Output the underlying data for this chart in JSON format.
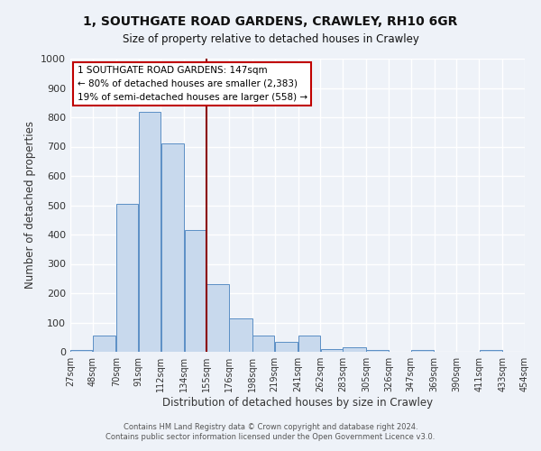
{
  "title": "1, SOUTHGATE ROAD GARDENS, CRAWLEY, RH10 6GR",
  "subtitle": "Size of property relative to detached houses in Crawley",
  "xlabel": "Distribution of detached houses by size in Crawley",
  "ylabel": "Number of detached properties",
  "bar_left_edges": [
    27,
    48,
    70,
    91,
    112,
    134,
    155,
    176,
    198,
    219,
    241,
    262,
    283,
    305,
    326,
    347,
    369,
    390,
    411,
    433
  ],
  "bar_widths": [
    21,
    22,
    21,
    21,
    22,
    21,
    21,
    22,
    21,
    22,
    21,
    21,
    22,
    21,
    21,
    22,
    21,
    21,
    22,
    21
  ],
  "bar_heights": [
    5,
    55,
    505,
    820,
    710,
    415,
    230,
    115,
    55,
    35,
    55,
    10,
    15,
    5,
    0,
    5,
    0,
    0,
    5,
    0
  ],
  "tick_labels": [
    "27sqm",
    "48sqm",
    "70sqm",
    "91sqm",
    "112sqm",
    "134sqm",
    "155sqm",
    "176sqm",
    "198sqm",
    "219sqm",
    "241sqm",
    "262sqm",
    "283sqm",
    "305sqm",
    "326sqm",
    "347sqm",
    "369sqm",
    "390sqm",
    "411sqm",
    "433sqm",
    "454sqm"
  ],
  "tick_positions": [
    27,
    48,
    70,
    91,
    112,
    134,
    155,
    176,
    198,
    219,
    241,
    262,
    283,
    305,
    326,
    347,
    369,
    390,
    411,
    433,
    454
  ],
  "bar_color": "#c8d9ed",
  "bar_edge_color": "#5b8fc5",
  "vline_x": 155,
  "vline_color": "#8b0000",
  "ylim": [
    0,
    1000
  ],
  "yticks": [
    0,
    100,
    200,
    300,
    400,
    500,
    600,
    700,
    800,
    900,
    1000
  ],
  "annotation_title": "1 SOUTHGATE ROAD GARDENS: 147sqm",
  "annotation_line1": "← 80% of detached houses are smaller (2,383)",
  "annotation_line2": "19% of semi-detached houses are larger (558) →",
  "annotation_box_color": "#ffffff",
  "annotation_box_edge": "#c00000",
  "footer_line1": "Contains HM Land Registry data © Crown copyright and database right 2024.",
  "footer_line2": "Contains public sector information licensed under the Open Government Licence v3.0.",
  "bg_color": "#eef2f8",
  "grid_color": "#ffffff"
}
